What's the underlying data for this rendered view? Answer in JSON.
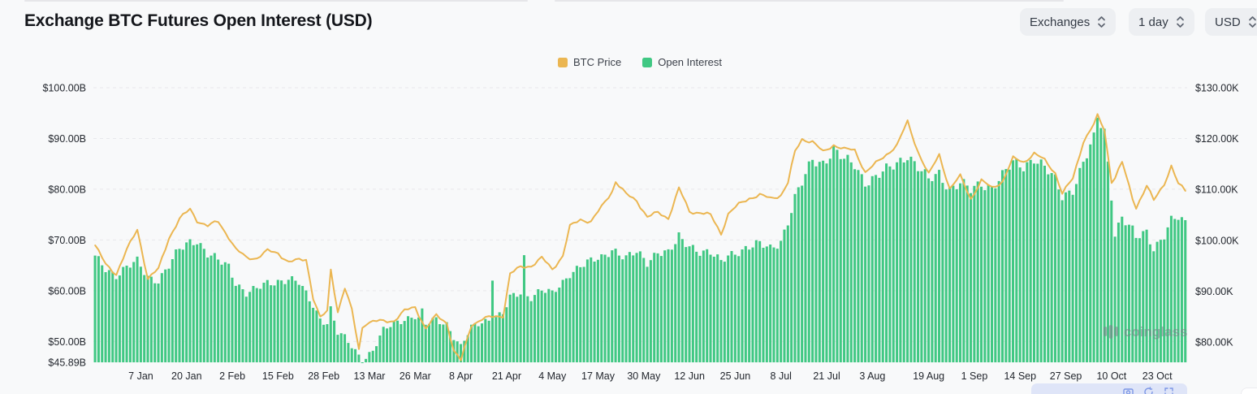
{
  "header": {
    "title": "Exchange BTC Futures Open Interest (USD)"
  },
  "controls": {
    "items": [
      {
        "label": "Exchanges"
      },
      {
        "label": "1 day"
      },
      {
        "label": "USD"
      }
    ]
  },
  "legend": {
    "items": [
      {
        "label": "BTC Price",
        "color": "#ebb651"
      },
      {
        "label": "Open Interest",
        "color": "#40c883"
      }
    ]
  },
  "watermark": {
    "text": "coinglass"
  },
  "chart_data": {
    "type": "bar+line",
    "title": "Exchange BTC Futures Open Interest (USD)",
    "grid": "horizontal-dashed",
    "legend_position": "top-center",
    "x_start": "2024-12-25",
    "x_end": "2025-10-31",
    "x_ticks": [
      {
        "date": "2025-01-07",
        "label": "7 Jan"
      },
      {
        "date": "2025-01-20",
        "label": "20 Jan"
      },
      {
        "date": "2025-02-02",
        "label": "2 Feb"
      },
      {
        "date": "2025-02-15",
        "label": "15 Feb"
      },
      {
        "date": "2025-02-28",
        "label": "28 Feb"
      },
      {
        "date": "2025-03-13",
        "label": "13 Mar"
      },
      {
        "date": "2025-03-26",
        "label": "26 Mar"
      },
      {
        "date": "2025-04-08",
        "label": "8 Apr"
      },
      {
        "date": "2025-04-21",
        "label": "21 Apr"
      },
      {
        "date": "2025-05-04",
        "label": "4 May"
      },
      {
        "date": "2025-05-17",
        "label": "17 May"
      },
      {
        "date": "2025-05-30",
        "label": "30 May"
      },
      {
        "date": "2025-06-12",
        "label": "12 Jun"
      },
      {
        "date": "2025-06-25",
        "label": "25 Jun"
      },
      {
        "date": "2025-07-08",
        "label": "8 Jul"
      },
      {
        "date": "2025-07-21",
        "label": "21 Jul"
      },
      {
        "date": "2025-08-03",
        "label": "3 Aug"
      },
      {
        "date": "2025-08-19",
        "label": "19 Aug"
      },
      {
        "date": "2025-09-01",
        "label": "1 Sep"
      },
      {
        "date": "2025-09-14",
        "label": "14 Sep"
      },
      {
        "date": "2025-09-27",
        "label": "27 Sep"
      },
      {
        "date": "2025-10-10",
        "label": "10 Oct"
      },
      {
        "date": "2025-10-23",
        "label": "23 Oct"
      }
    ],
    "left_axis": {
      "title": "Open Interest (billion USD)",
      "min": 45.89,
      "max": 100,
      "ticks": [
        {
          "value": 100,
          "label": "$100.00B",
          "grid": true
        },
        {
          "value": 90,
          "label": "$90.00B",
          "grid": true
        },
        {
          "value": 80,
          "label": "$80.00B",
          "grid": true
        },
        {
          "value": 70,
          "label": "$70.00B",
          "grid": true
        },
        {
          "value": 60,
          "label": "$60.00B",
          "grid": true
        },
        {
          "value": 50,
          "label": "$50.00B",
          "grid": true
        },
        {
          "value": 45.89,
          "label": "$45.89B",
          "grid": false
        }
      ]
    },
    "right_axis": {
      "title": "BTC Price (thousand USD)",
      "min": 76,
      "max": 130,
      "ticks": [
        {
          "value": 130,
          "label": "$130.00K"
        },
        {
          "value": 120,
          "label": "$120.00K"
        },
        {
          "value": 110,
          "label": "$110.00K"
        },
        {
          "value": 100,
          "label": "$100.00K"
        },
        {
          "value": 90,
          "label": "$90.00K"
        },
        {
          "value": 80,
          "label": "$80.00K"
        }
      ]
    },
    "series": [
      {
        "name": "Open Interest",
        "type": "bar",
        "axis": "left",
        "unit": "billion USD",
        "color": "#40c883"
      },
      {
        "name": "BTC Price",
        "type": "line",
        "axis": "right",
        "unit": "thousand USD",
        "color": "#ebb651"
      }
    ],
    "points_format": [
      "date",
      "open_interest_billion_usd",
      "btc_price_thousand_usd"
    ],
    "points": [
      [
        "2024-12-25",
        66.5,
        99.0
      ],
      [
        "2024-12-28",
        64.5,
        95.2
      ],
      [
        "2024-12-31",
        63.2,
        93.4
      ],
      [
        "2025-01-03",
        64.5,
        98.1
      ],
      [
        "2025-01-06",
        65.6,
        102.1
      ],
      [
        "2025-01-09",
        62.8,
        92.5
      ],
      [
        "2025-01-12",
        62.2,
        94.3
      ],
      [
        "2025-01-15",
        64.8,
        100.5
      ],
      [
        "2025-01-18",
        68.0,
        104.2
      ],
      [
        "2025-01-21",
        69.8,
        106.1
      ],
      [
        "2025-01-23",
        70.1,
        103.9
      ],
      [
        "2025-01-26",
        67.2,
        102.8
      ],
      [
        "2025-01-29",
        65.8,
        103.7
      ],
      [
        "2025-02-01",
        64.8,
        100.6
      ],
      [
        "2025-02-03",
        61.8,
        98.2
      ],
      [
        "2025-02-06",
        59.6,
        96.6
      ],
      [
        "2025-02-09",
        60.2,
        96.5
      ],
      [
        "2025-02-12",
        61.4,
        97.9
      ],
      [
        "2025-02-15",
        62.0,
        97.5
      ],
      [
        "2025-02-18",
        62.4,
        95.7
      ],
      [
        "2025-02-21",
        61.4,
        96.1
      ],
      [
        "2025-02-23",
        59.2,
        96.3
      ],
      [
        "2025-02-25",
        57.2,
        88.7
      ],
      [
        "2025-02-27",
        54.6,
        84.7
      ],
      [
        "2025-03-01",
        53.8,
        86.0
      ],
      [
        "2025-03-02",
        56.4,
        94.2
      ],
      [
        "2025-03-04",
        51.6,
        86.0
      ],
      [
        "2025-03-06",
        50.6,
        90.6
      ],
      [
        "2025-03-08",
        49.0,
        86.2
      ],
      [
        "2025-03-10",
        47.4,
        78.6
      ],
      [
        "2025-03-11",
        45.9,
        82.9
      ],
      [
        "2025-03-12",
        47.0,
        83.7
      ],
      [
        "2025-03-14",
        48.2,
        84.0
      ],
      [
        "2025-03-17",
        52.0,
        84.1
      ],
      [
        "2025-03-20",
        53.6,
        84.2
      ],
      [
        "2025-03-23",
        54.6,
        86.1
      ],
      [
        "2025-03-26",
        55.0,
        86.9
      ],
      [
        "2025-03-29",
        53.2,
        82.6
      ],
      [
        "2025-04-01",
        54.4,
        85.2
      ],
      [
        "2025-04-04",
        53.6,
        83.8
      ],
      [
        "2025-04-06",
        51.0,
        78.2
      ],
      [
        "2025-04-08",
        48.8,
        76.3
      ],
      [
        "2025-04-11",
        52.6,
        83.4
      ],
      [
        "2025-04-14",
        54.0,
        84.5
      ],
      [
        "2025-04-17",
        54.6,
        84.9
      ],
      [
        "2025-04-20",
        55.4,
        85.2
      ],
      [
        "2025-04-22",
        58.4,
        93.4
      ],
      [
        "2025-04-25",
        59.6,
        94.7
      ],
      [
        "2025-04-28",
        59.0,
        95.0
      ],
      [
        "2025-05-01",
        60.2,
        96.5
      ],
      [
        "2025-05-04",
        59.2,
        94.3
      ],
      [
        "2025-05-07",
        61.6,
        97.0
      ],
      [
        "2025-05-09",
        63.6,
        102.7
      ],
      [
        "2025-05-12",
        65.0,
        104.1
      ],
      [
        "2025-05-15",
        65.6,
        103.7
      ],
      [
        "2025-05-18",
        66.4,
        106.5
      ],
      [
        "2025-05-21",
        68.4,
        109.7
      ],
      [
        "2025-05-22",
        68.0,
        111.6
      ],
      [
        "2025-05-25",
        66.4,
        109.0
      ],
      [
        "2025-05-28",
        67.4,
        107.8
      ],
      [
        "2025-05-31",
        65.6,
        104.6
      ],
      [
        "2025-06-03",
        68.0,
        105.4
      ],
      [
        "2025-06-06",
        67.4,
        104.4
      ],
      [
        "2025-06-09",
        70.0,
        110.2
      ],
      [
        "2025-06-12",
        69.0,
        105.6
      ],
      [
        "2025-06-15",
        68.0,
        105.5
      ],
      [
        "2025-06-18",
        67.4,
        104.9
      ],
      [
        "2025-06-21",
        65.4,
        101.3
      ],
      [
        "2025-06-23",
        67.0,
        105.2
      ],
      [
        "2025-06-26",
        68.0,
        107.0
      ],
      [
        "2025-06-29",
        68.6,
        108.3
      ],
      [
        "2025-07-02",
        69.0,
        108.9
      ],
      [
        "2025-07-05",
        68.4,
        108.2
      ],
      [
        "2025-07-08",
        70.0,
        108.9
      ],
      [
        "2025-07-10",
        73.6,
        111.3
      ],
      [
        "2025-07-12",
        78.0,
        117.4
      ],
      [
        "2025-07-14",
        81.0,
        119.9
      ],
      [
        "2025-07-17",
        86.0,
        119.4
      ],
      [
        "2025-07-20",
        85.4,
        117.3
      ],
      [
        "2025-07-23",
        87.6,
        118.8
      ],
      [
        "2025-07-26",
        85.6,
        117.9
      ],
      [
        "2025-07-29",
        85.0,
        117.7
      ],
      [
        "2025-08-01",
        81.6,
        113.4
      ],
      [
        "2025-08-04",
        82.2,
        115.1
      ],
      [
        "2025-08-07",
        83.6,
        116.9
      ],
      [
        "2025-08-10",
        85.2,
        118.7
      ],
      [
        "2025-08-13",
        87.0,
        123.3
      ],
      [
        "2025-08-16",
        84.2,
        117.4
      ],
      [
        "2025-08-19",
        81.6,
        112.9
      ],
      [
        "2025-08-22",
        83.2,
        116.9
      ],
      [
        "2025-08-25",
        80.2,
        110.1
      ],
      [
        "2025-08-28",
        81.2,
        112.6
      ],
      [
        "2025-08-31",
        79.6,
        108.2
      ],
      [
        "2025-09-03",
        81.2,
        111.7
      ],
      [
        "2025-09-06",
        80.6,
        110.3
      ],
      [
        "2025-09-09",
        82.6,
        111.6
      ],
      [
        "2025-09-12",
        85.0,
        116.1
      ],
      [
        "2025-09-15",
        84.6,
        115.4
      ],
      [
        "2025-09-18",
        86.4,
        117.1
      ],
      [
        "2025-09-21",
        84.2,
        115.7
      ],
      [
        "2025-09-24",
        81.6,
        113.3
      ],
      [
        "2025-09-26",
        78.6,
        109.2
      ],
      [
        "2025-09-29",
        80.2,
        112.1
      ],
      [
        "2025-10-02",
        85.2,
        119.5
      ],
      [
        "2025-10-05",
        89.6,
        122.8
      ],
      [
        "2025-10-06",
        94.0,
        124.4
      ],
      [
        "2025-10-08",
        91.4,
        121.7
      ],
      [
        "2025-10-10",
        79.0,
        111.6
      ],
      [
        "2025-10-11",
        71.5,
        112.4
      ],
      [
        "2025-10-13",
        74.6,
        115.3
      ],
      [
        "2025-10-16",
        71.6,
        108.2
      ],
      [
        "2025-10-17",
        70.2,
        106.5
      ],
      [
        "2025-10-20",
        71.6,
        110.7
      ],
      [
        "2025-10-22",
        68.6,
        107.8
      ],
      [
        "2025-10-25",
        71.0,
        111.2
      ],
      [
        "2025-10-27",
        73.6,
        114.6
      ],
      [
        "2025-10-29",
        74.2,
        111.0
      ],
      [
        "2025-10-31",
        73.2,
        109.8
      ]
    ],
    "spikes": [
      [
        "2025-03-28",
        56.5
      ],
      [
        "2025-04-17",
        62.0
      ],
      [
        "2025-04-26",
        67.0
      ],
      [
        "2025-06-09",
        71.5
      ]
    ]
  }
}
